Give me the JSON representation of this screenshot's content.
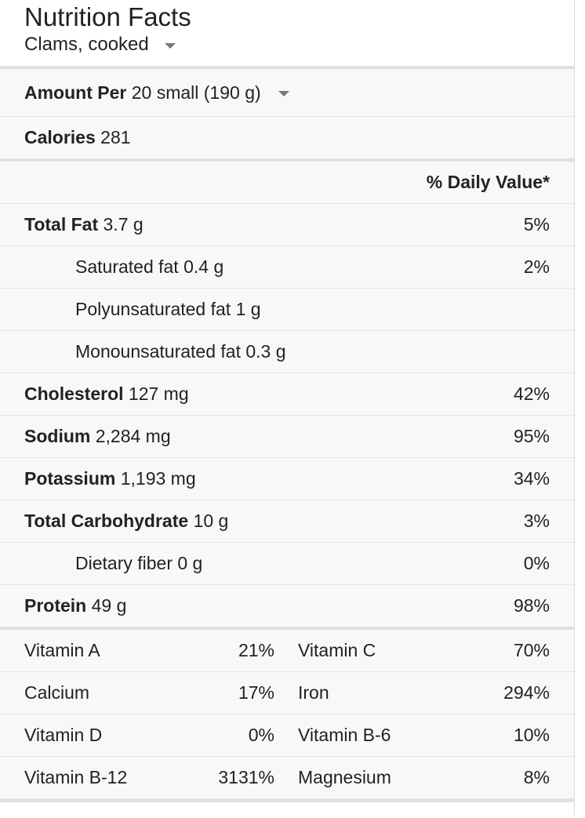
{
  "header": {
    "title": "Nutrition Facts",
    "food": "Clams, cooked",
    "food_dropdown_icon": "caret-down-icon"
  },
  "serving": {
    "label": "Amount Per",
    "value": "20 small (190 g)",
    "dropdown_icon": "caret-down-icon"
  },
  "calories": {
    "label": "Calories",
    "value": "281"
  },
  "dv_header": "% Daily Value*",
  "nutrients": [
    {
      "label": "Total Fat",
      "amount": "3.7 g",
      "dv": "5%",
      "bold": true,
      "indent": false
    },
    {
      "label": "Saturated fat",
      "amount": "0.4 g",
      "dv": "2%",
      "bold": false,
      "indent": true
    },
    {
      "label": "Polyunsaturated fat",
      "amount": "1 g",
      "dv": "",
      "bold": false,
      "indent": true
    },
    {
      "label": "Monounsaturated fat",
      "amount": "0.3 g",
      "dv": "",
      "bold": false,
      "indent": true
    },
    {
      "label": "Cholesterol",
      "amount": "127 mg",
      "dv": "42%",
      "bold": true,
      "indent": false
    },
    {
      "label": "Sodium",
      "amount": "2,284 mg",
      "dv": "95%",
      "bold": true,
      "indent": false
    },
    {
      "label": "Potassium",
      "amount": "1,193 mg",
      "dv": "34%",
      "bold": true,
      "indent": false
    },
    {
      "label": "Total Carbohydrate",
      "amount": "10 g",
      "dv": "3%",
      "bold": true,
      "indent": false
    },
    {
      "label": "Dietary fiber",
      "amount": "0 g",
      "dv": "0%",
      "bold": false,
      "indent": true
    },
    {
      "label": "Protein",
      "amount": "49 g",
      "dv": "98%",
      "bold": true,
      "indent": false
    }
  ],
  "vitamins": [
    {
      "left_label": "Vitamin A",
      "left_value": "21%",
      "right_label": "Vitamin C",
      "right_value": "70%"
    },
    {
      "left_label": "Calcium",
      "left_value": "17%",
      "right_label": "Iron",
      "right_value": "294%"
    },
    {
      "left_label": "Vitamin D",
      "left_value": "0%",
      "right_label": "Vitamin B-6",
      "right_value": "10%"
    },
    {
      "left_label": "Vitamin B-12",
      "left_value": "3131%",
      "right_label": "Magnesium",
      "right_value": "8%"
    }
  ],
  "colors": {
    "text": "#222222",
    "table_bg": "#f8f8f8",
    "divider": "#e0e0e0",
    "caret": "#777777"
  }
}
